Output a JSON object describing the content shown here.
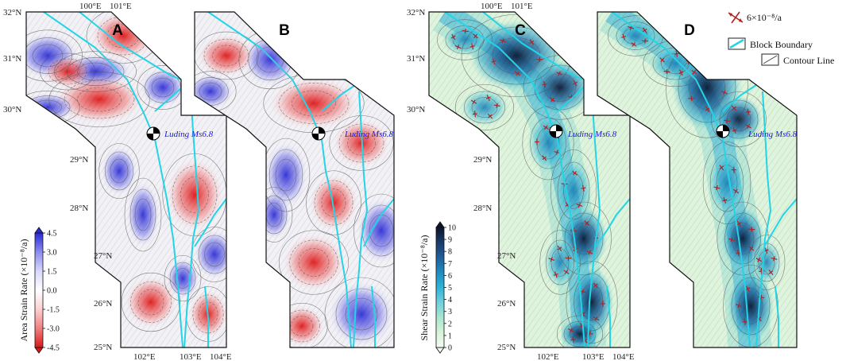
{
  "panels": [
    {
      "id": "A",
      "label": "A",
      "kind": "area"
    },
    {
      "id": "B",
      "label": "B",
      "kind": "area"
    },
    {
      "id": "C",
      "label": "C",
      "kind": "shear"
    },
    {
      "id": "D",
      "label": "D",
      "kind": "shear"
    }
  ],
  "lon_ticks_top": [
    "100°E",
    "101°E"
  ],
  "lon_ticks_bottom": [
    "102°E",
    "103°E",
    "104°E"
  ],
  "lat_ticks": [
    "32°N",
    "31°N",
    "30°N",
    "29°N",
    "28°N",
    "27°N",
    "26°N",
    "25°N"
  ],
  "earthquake_label": "Luding Ms6.8",
  "legend": {
    "strain_scale": "6×10⁻⁸/a",
    "block_boundary": "Block Boundary",
    "contour_line": "Contour Line"
  },
  "colorbar_area": {
    "title": "Area Strain Rate (×10⁻⁸/a)",
    "ticks": [
      "4.5",
      "3.0",
      "1.5",
      "0.0",
      "-1.5",
      "-3.0",
      "-4.5"
    ],
    "colors": [
      "#2a2ad4",
      "#8c8cf0",
      "#d8d8fb",
      "#ffffff",
      "#fbd0d0",
      "#f08080",
      "#d81818"
    ]
  },
  "colorbar_shear": {
    "title": "Shear Strain Rate (×10⁻⁸/a)",
    "ticks": [
      "10",
      "9",
      "8",
      "7",
      "6",
      "5",
      "4",
      "3",
      "2",
      "1",
      "0"
    ],
    "colors": [
      "#0a1428",
      "#1a3a6a",
      "#1f5f9a",
      "#1f8cc0",
      "#2fb3d8",
      "#6fd0dc",
      "#a8e6d0",
      "#d6f3d8",
      "#f4fbf2"
    ]
  },
  "colors": {
    "boundary": "#22d4e6",
    "contour": "#555555",
    "strain_cross": "#b22222",
    "earthquake_label": "#1a1adc"
  }
}
